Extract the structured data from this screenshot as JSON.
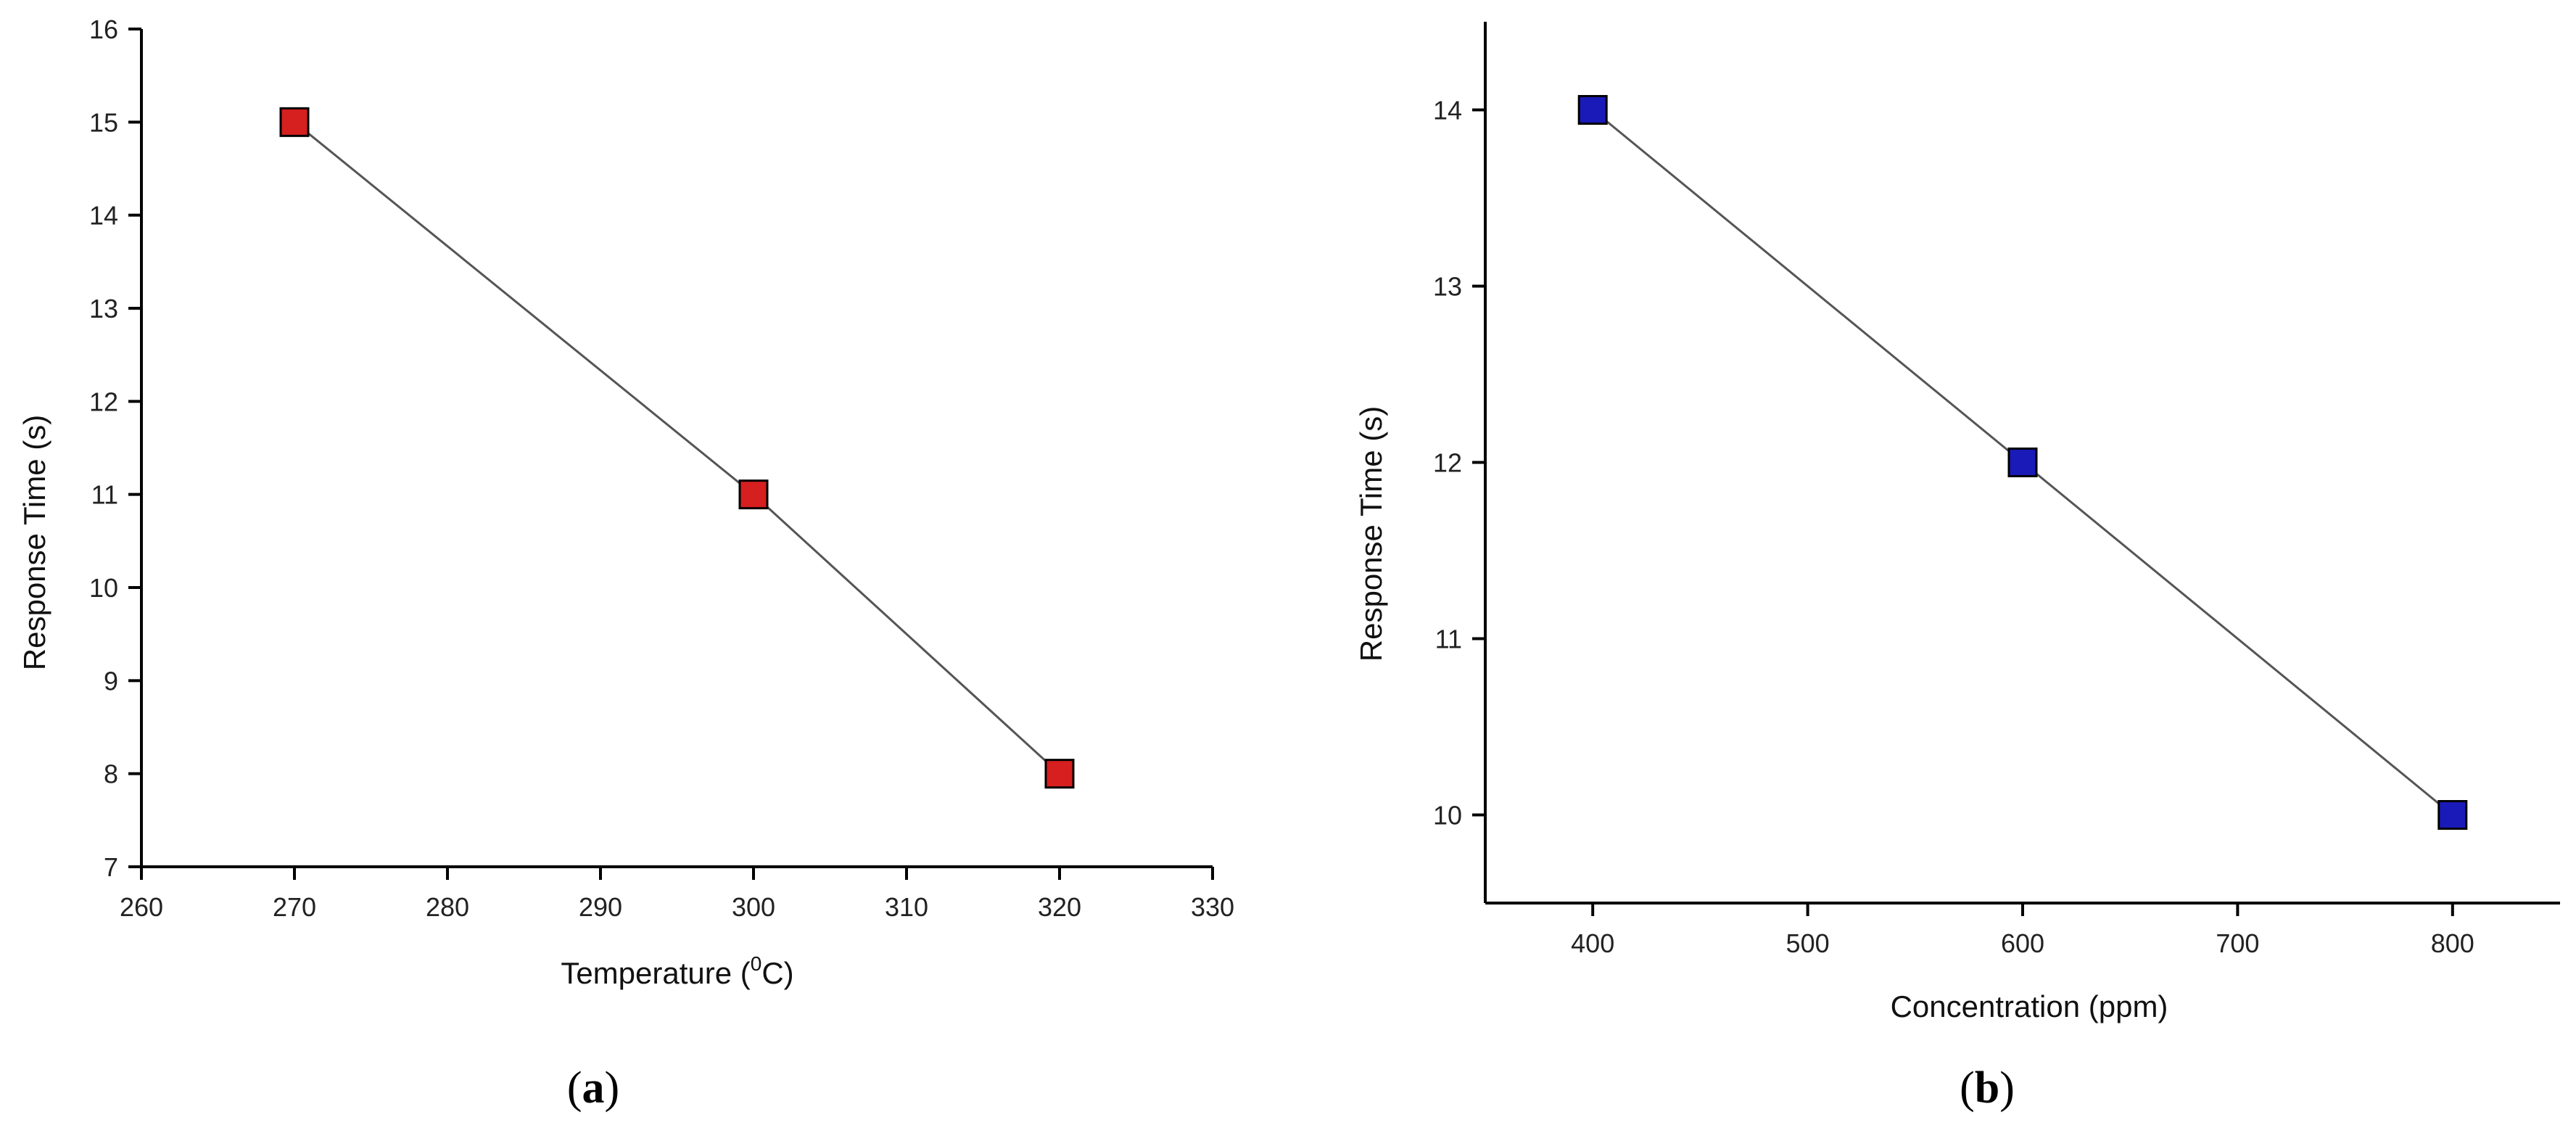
{
  "chart_data": [
    {
      "id": "a",
      "type": "line",
      "panel_label": "a",
      "xlabel_text": "Temperature (",
      "xlabel_sup": "0",
      "xlabel_tail": "C)",
      "ylabel": "Response Time (s)",
      "xlim": [
        260,
        330
      ],
      "ylim": [
        7,
        16
      ],
      "xticks": [
        260,
        270,
        280,
        290,
        300,
        310,
        320,
        330
      ],
      "yticks": [
        7,
        8,
        9,
        10,
        11,
        12,
        13,
        14,
        15,
        16
      ],
      "series": [
        {
          "x": [
            270,
            300,
            320
          ],
          "values": [
            15,
            11,
            8
          ],
          "color": "#d61f1f"
        }
      ],
      "grid": false
    },
    {
      "id": "b",
      "type": "line",
      "panel_label": "b",
      "xlabel": "Concentration (ppm)",
      "ylabel": "Response Time (s)",
      "xlim": [
        350,
        850
      ],
      "ylim": [
        9.5,
        14.5
      ],
      "xticks": [
        400,
        500,
        600,
        700,
        800
      ],
      "yticks": [
        10,
        11,
        12,
        13,
        14
      ],
      "series": [
        {
          "x": [
            400,
            600,
            800
          ],
          "values": [
            14,
            12,
            10
          ],
          "color": "#1a1ab8"
        }
      ],
      "grid": false
    }
  ]
}
